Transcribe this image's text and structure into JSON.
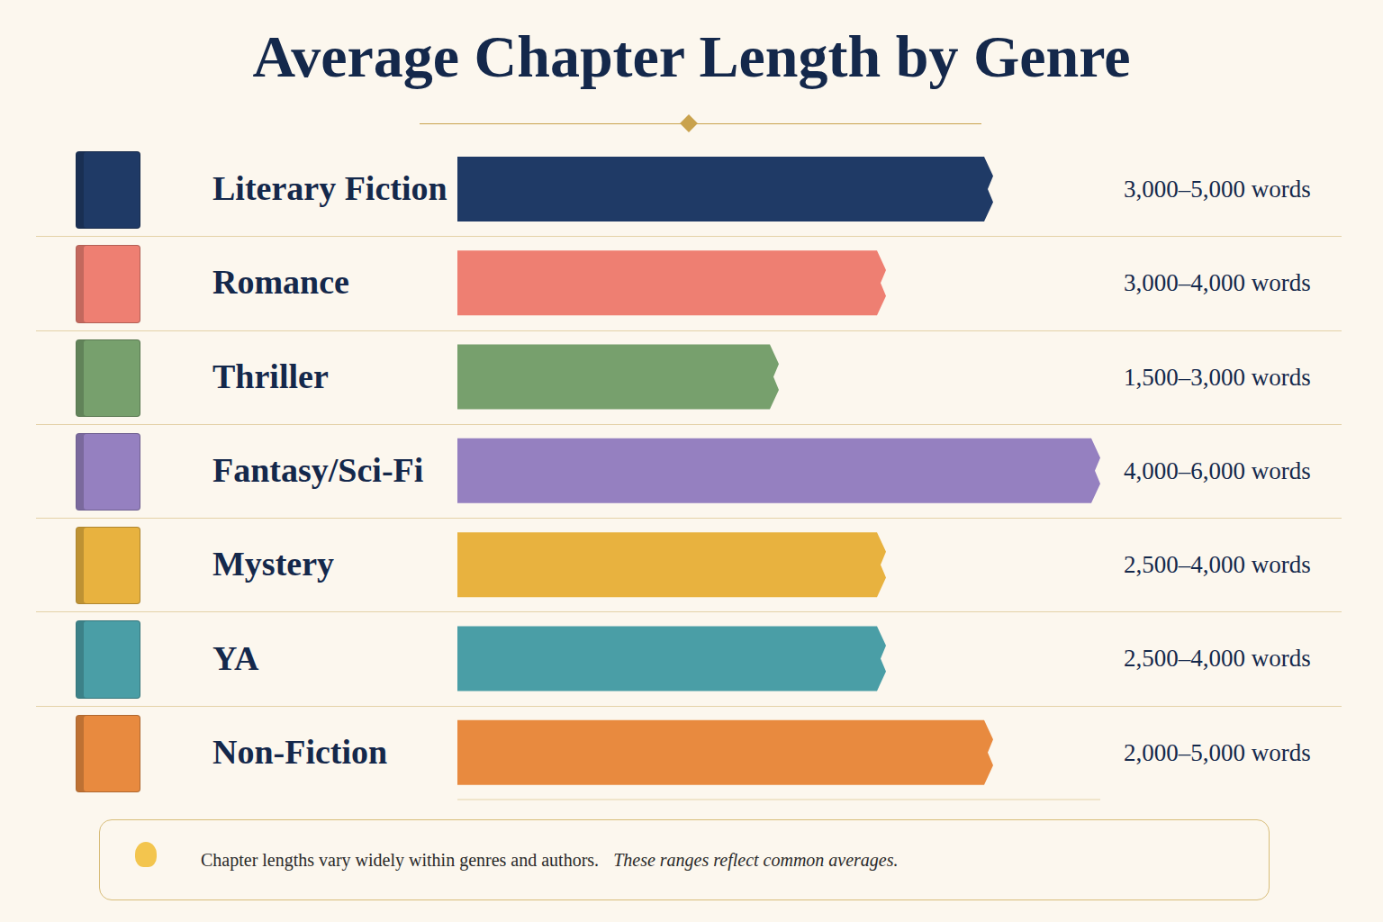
{
  "chart_data": {
    "type": "bar",
    "orientation": "horizontal",
    "title": "Average Chapter Length by Genre",
    "categories": [
      "Literary Fiction",
      "Romance",
      "Thriller",
      "Fantasy/Sci-Fi",
      "Mystery",
      "YA",
      "Non-Fiction"
    ],
    "values": [
      5000,
      4000,
      3000,
      6000,
      4000,
      4000,
      5000
    ],
    "value_labels": [
      "3,000–5,000 words",
      "3,000–4,000 words",
      "1,500–3,000 words",
      "4,000–6,000 words",
      "2,500–4,000 words",
      "2,500–4,000 words",
      "2,000–5,000 words"
    ],
    "colors": [
      "#1f3a66",
      "#ee7f72",
      "#77a06d",
      "#9580c0",
      "#e8b23f",
      "#4a9ea6",
      "#e88a3f"
    ],
    "xlim": [
      0,
      6000
    ],
    "tick_labels": "y",
    "grid": false,
    "data_labels": true,
    "footnote": [
      "Chapter lengths vary widely within genres and authors.",
      "These ranges reflect common averages."
    ]
  }
}
